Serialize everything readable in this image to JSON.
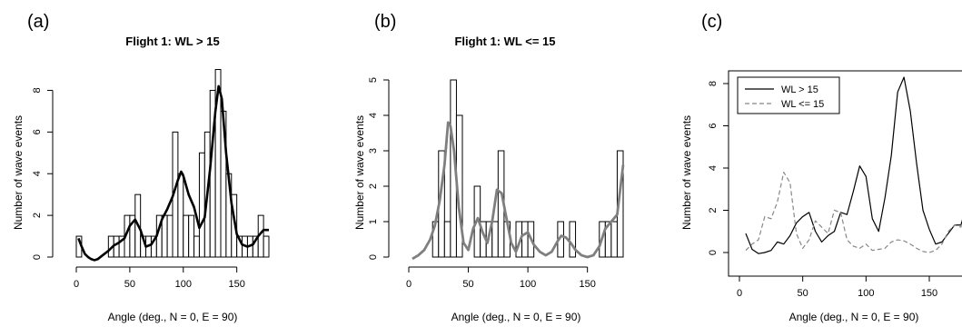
{
  "figure": {
    "panels": [
      {
        "letter": "(a)",
        "title": "Flight 1: WL > 15",
        "xlabel": "Angle (deg., N = 0, E = 90)",
        "ylabel": "Number of wave events"
      },
      {
        "letter": "(b)",
        "title": "Flight 1: WL <= 15",
        "xlabel": "Angle (deg., N = 0, E = 90)",
        "ylabel": "Number of wave events"
      },
      {
        "letter": "(c)",
        "title": "",
        "xlabel": "Angle (deg., N = 0, E = 90)",
        "ylabel": "Number of wave events",
        "legend": [
          "WL > 15",
          "WL <= 15"
        ]
      }
    ]
  },
  "colors": {
    "hist_edge": "#000000",
    "smooth_a": "#000000",
    "smooth_b": "#7f7f7f",
    "line_wl_gt": "#000000",
    "line_wl_le": "#888888"
  },
  "chart_data": [
    {
      "type": "bar",
      "subtype": "histogram with smoothed density curve",
      "title": "Flight 1: WL > 15",
      "xlabel": "Angle (deg., N = 0, E = 90)",
      "ylabel": "Number of wave events",
      "bin_width": 5,
      "bin_starts": [
        0,
        5,
        10,
        15,
        20,
        25,
        30,
        35,
        40,
        45,
        50,
        55,
        60,
        65,
        70,
        75,
        80,
        85,
        90,
        95,
        100,
        105,
        110,
        115,
        120,
        125,
        130,
        135,
        140,
        145,
        150,
        155,
        160,
        165,
        170,
        175
      ],
      "values": [
        1,
        0,
        0,
        0,
        0,
        0,
        1,
        1,
        1,
        2,
        2,
        3,
        1,
        1,
        1,
        2,
        2,
        2,
        6,
        4,
        2,
        2,
        1,
        5,
        6,
        8,
        9,
        7,
        4,
        3,
        1,
        1,
        1,
        1,
        2,
        1
      ],
      "xticks": [
        0,
        50,
        100,
        150
      ],
      "yticks": [
        0,
        2,
        4,
        6,
        8
      ],
      "xlim": [
        0,
        180
      ],
      "ylim": [
        0,
        9
      ],
      "smooth": {
        "x": [
          2,
          5,
          8,
          11,
          14,
          17,
          20,
          25,
          30,
          35,
          40,
          45,
          50,
          55,
          60,
          65,
          70,
          75,
          80,
          85,
          90,
          95,
          98,
          100,
          105,
          110,
          115,
          120,
          125,
          130,
          133,
          136,
          140,
          145,
          150,
          155,
          160,
          165,
          170,
          175,
          180
        ],
        "y": [
          0.9,
          0.5,
          0.15,
          0,
          -0.1,
          -0.15,
          -0.1,
          0.1,
          0.3,
          0.55,
          0.7,
          0.9,
          1.5,
          1.8,
          1.3,
          0.5,
          0.6,
          1.0,
          1.8,
          2.3,
          2.9,
          3.7,
          4.1,
          3.9,
          3.0,
          2.4,
          1.4,
          1.9,
          4.2,
          7.0,
          8.2,
          7.6,
          5.0,
          2.6,
          1.1,
          0.6,
          0.5,
          0.6,
          1.0,
          1.3,
          1.3
        ]
      }
    },
    {
      "type": "bar",
      "subtype": "histogram with smoothed density curve",
      "title": "Flight 1: WL <= 15",
      "xlabel": "Angle (deg., N = 0, E = 90)",
      "ylabel": "Number of wave events",
      "bin_width": 5,
      "bin_starts": [
        0,
        5,
        10,
        15,
        20,
        25,
        30,
        35,
        40,
        45,
        50,
        55,
        60,
        65,
        70,
        75,
        80,
        85,
        90,
        95,
        100,
        105,
        110,
        115,
        120,
        125,
        130,
        135,
        140,
        145,
        150,
        155,
        160,
        165,
        170,
        175
      ],
      "values": [
        0,
        0,
        0,
        0,
        1,
        3,
        1,
        5,
        4,
        0,
        0,
        2,
        1,
        1,
        1,
        3,
        1,
        0,
        1,
        1,
        1,
        0,
        0,
        0,
        0,
        1,
        0,
        1,
        0,
        0,
        0,
        0,
        1,
        1,
        1,
        3
      ],
      "xticks": [
        0,
        50,
        100,
        150
      ],
      "yticks": [
        0,
        1,
        2,
        3,
        4,
        5
      ],
      "xlim": [
        0,
        180
      ],
      "ylim": [
        0,
        5
      ],
      "smooth": {
        "x": [
          3,
          8,
          13,
          18,
          22,
          26,
          30,
          33,
          35,
          38,
          42,
          46,
          50,
          54,
          58,
          62,
          66,
          70,
          74,
          78,
          82,
          86,
          90,
          95,
          100,
          105,
          110,
          115,
          120,
          125,
          128,
          132,
          136,
          140,
          145,
          150,
          155,
          160,
          165,
          170,
          175,
          180
        ],
        "y": [
          -0.05,
          0.05,
          0.2,
          0.5,
          0.9,
          1.6,
          2.6,
          3.8,
          3.7,
          3.0,
          1.4,
          0.4,
          0.2,
          0.8,
          1.1,
          0.7,
          0.4,
          1.0,
          1.9,
          1.8,
          1.1,
          0.4,
          0.15,
          0.6,
          0.7,
          0.35,
          0.15,
          0.05,
          0.15,
          0.45,
          0.6,
          0.55,
          0.4,
          0.2,
          0.05,
          0,
          0.05,
          0.3,
          0.8,
          1.0,
          1.2,
          2.6
        ]
      }
    },
    {
      "type": "line",
      "title": "",
      "xlabel": "Angle (deg., N = 0, E = 90)",
      "ylabel": "Number of wave events",
      "xticks": [
        0,
        50,
        100,
        150
      ],
      "yticks": [
        0,
        2,
        4,
        6,
        8
      ],
      "xlim": [
        0,
        180
      ],
      "ylim": [
        -0.3,
        8.6
      ],
      "legend_position": "top-left",
      "series": [
        {
          "name": "WL > 15",
          "style": "solid",
          "x": [
            5,
            10,
            15,
            20,
            25,
            30,
            35,
            40,
            45,
            50,
            55,
            60,
            65,
            70,
            75,
            80,
            85,
            90,
            95,
            100,
            105,
            110,
            115,
            120,
            125,
            130,
            135,
            140,
            145,
            150,
            155,
            160,
            165,
            170,
            175,
            180
          ],
          "y": [
            0.9,
            0.15,
            -0.05,
            0,
            0.1,
            0.5,
            0.4,
            0.8,
            1.4,
            1.7,
            1.9,
            1.0,
            0.5,
            0.8,
            1.0,
            1.9,
            1.8,
            2.9,
            4.1,
            3.6,
            1.6,
            1.0,
            2.6,
            4.6,
            7.6,
            8.3,
            6.7,
            4.2,
            2.0,
            1.1,
            0.4,
            0.5,
            0.9,
            1.3,
            1.3,
            2.4
          ]
        },
        {
          "name": "WL <= 15",
          "style": "dashed",
          "x": [
            5,
            10,
            15,
            20,
            25,
            30,
            35,
            40,
            45,
            50,
            55,
            60,
            65,
            70,
            75,
            80,
            85,
            90,
            95,
            100,
            105,
            110,
            115,
            120,
            125,
            130,
            135,
            140,
            145,
            150,
            155,
            160,
            165,
            170,
            175,
            180
          ],
          "y": [
            0.1,
            0.4,
            0.6,
            1.7,
            1.6,
            2.4,
            3.8,
            3.3,
            0.9,
            0.2,
            0.6,
            1.5,
            1.2,
            0.9,
            2.0,
            1.9,
            0.6,
            0.3,
            0.2,
            0.4,
            0.1,
            0.15,
            0.2,
            0.5,
            0.6,
            0.55,
            0.4,
            0.2,
            0.05,
            0,
            0.1,
            0.4,
            1.0,
            1.3,
            1.2,
            2.6
          ]
        }
      ]
    }
  ]
}
